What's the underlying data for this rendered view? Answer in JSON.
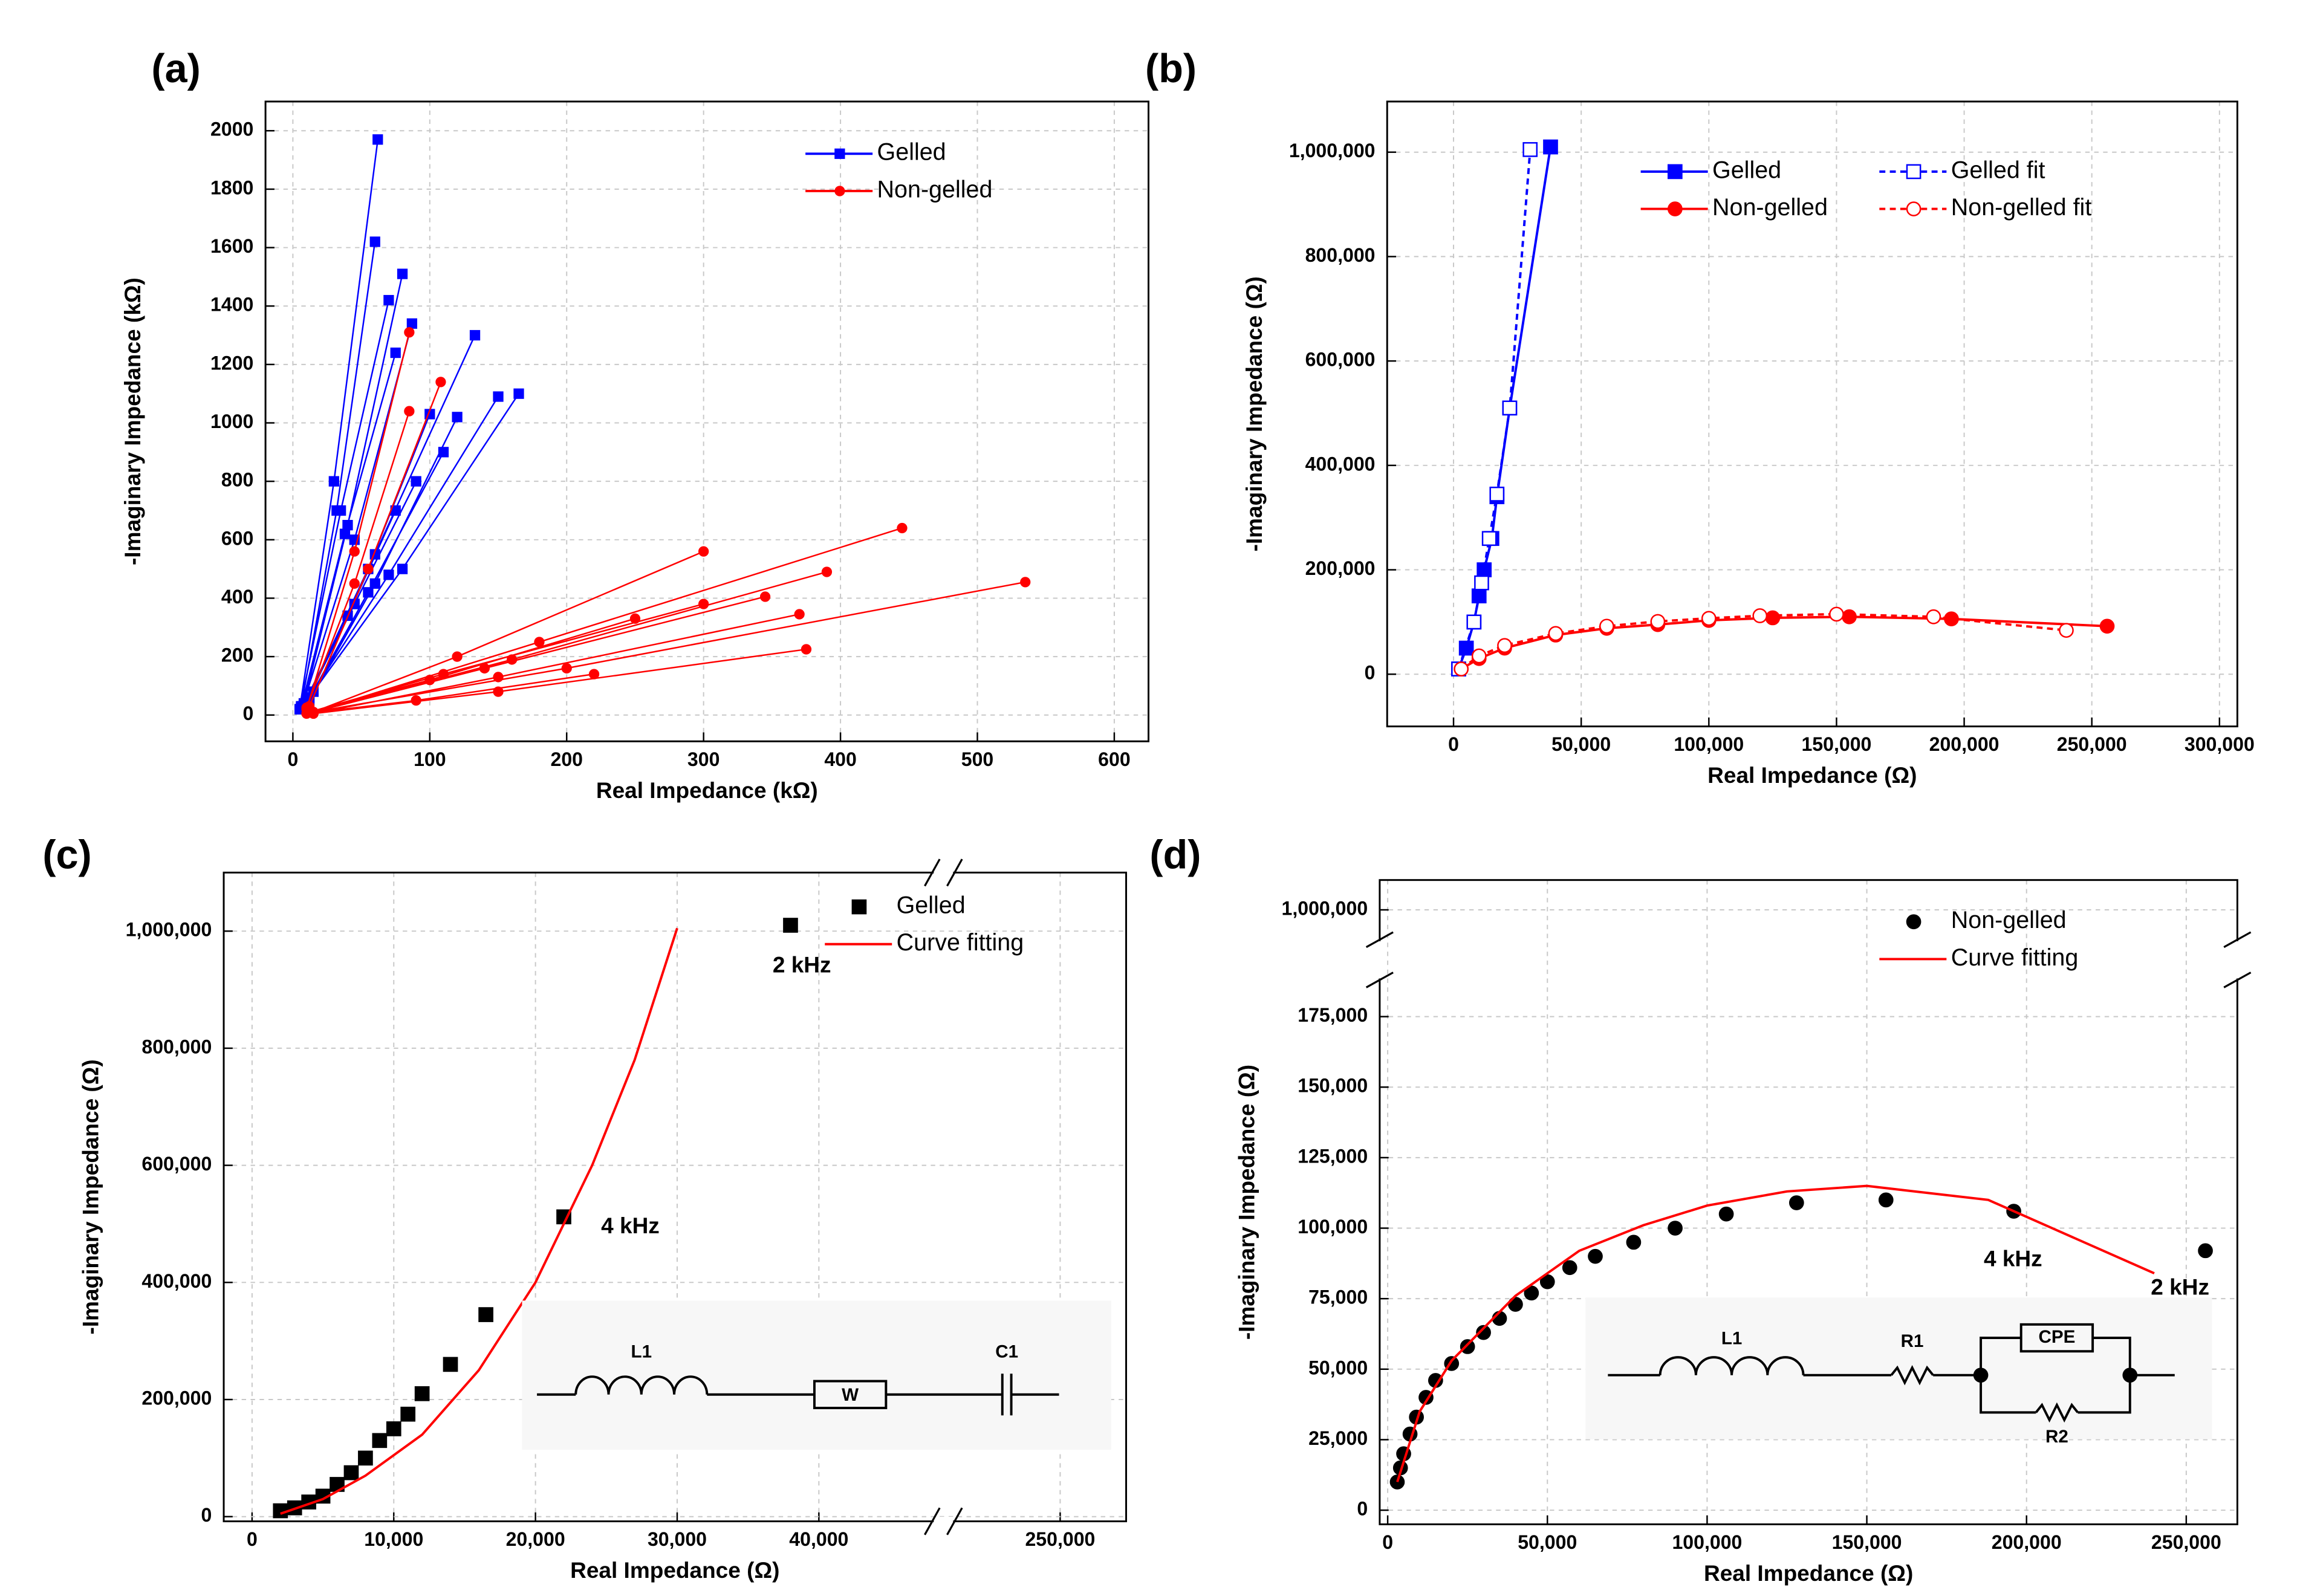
{
  "chart_data": [
    {
      "type": "line",
      "label": "(a)",
      "xlabel": "Real Impedance (kΩ)",
      "ylabel": "-Imaginary Impedance (kΩ)",
      "xlim": [
        -20,
        625
      ],
      "xticks": [
        0,
        100,
        200,
        300,
        400,
        500,
        600
      ],
      "ylim": [
        -90,
        2100
      ],
      "yticks": [
        0,
        200,
        400,
        600,
        800,
        1000,
        1200,
        1400,
        1600,
        1800,
        2000
      ],
      "grid": true,
      "legend": "upper right",
      "series": [
        {
          "name": "Gelled",
          "color": "#0000ff",
          "marker": "square",
          "filled": true,
          "dashed": false,
          "line": true,
          "x": [
            5,
            30,
            62,
            null,
            6,
            32,
            60,
            null,
            8,
            40,
            80,
            null,
            7,
            45,
            87,
            null,
            10,
            60,
            133,
            null,
            12,
            70,
            150,
            null,
            15,
            80,
            165,
            null,
            6,
            38,
            75,
            null,
            5,
            35,
            70,
            null,
            10,
            55,
            100,
            null,
            12,
            60,
            120,
            null,
            10,
            55,
            110,
            null,
            8,
            45,
            90,
            null,
            6,
            40,
            75
          ],
          "values": [
            20,
            800,
            1970,
            null,
            30,
            700,
            1620,
            null,
            40,
            650,
            1510,
            null,
            30,
            600,
            1340,
            null,
            50,
            550,
            1300,
            null,
            60,
            480,
            1090,
            null,
            80,
            500,
            1100,
            null,
            25,
            620,
            1240,
            null,
            20,
            700,
            1420,
            null,
            40,
            500,
            1030,
            null,
            50,
            450,
            1020,
            null,
            40,
            420,
            900,
            null,
            30,
            380,
            800,
            null,
            20,
            340,
            700
          ]
        },
        {
          "name": "Non-gelled",
          "color": "#ff0000",
          "marker": "circle",
          "filled": true,
          "dashed": false,
          "line": true,
          "x": [
            10,
            45,
            85,
            null,
            12,
            55,
            108,
            null,
            10,
            45,
            85,
            null,
            15,
            120,
            300,
            null,
            15,
            180,
            445,
            null,
            15,
            200,
            535,
            null,
            15,
            160,
            390,
            null,
            15,
            150,
            370,
            null,
            15,
            140,
            345,
            null,
            15,
            150,
            375,
            null,
            10,
            90,
            220,
            null,
            12,
            100,
            250,
            null,
            12,
            110,
            300
          ],
          "values": [
            20,
            560,
            1310,
            null,
            30,
            500,
            1140,
            null,
            25,
            450,
            1040,
            null,
            10,
            200,
            560,
            null,
            10,
            250,
            640,
            null,
            10,
            160,
            455,
            null,
            10,
            190,
            490,
            null,
            5,
            130,
            345,
            null,
            10,
            160,
            405,
            null,
            5,
            80,
            225,
            null,
            5,
            50,
            140,
            null,
            10,
            120,
            330,
            null,
            10,
            140,
            380
          ]
        }
      ]
    },
    {
      "type": "line",
      "label": "(b)",
      "xlabel": "Real Impedance (Ω)",
      "ylabel": "-Imaginary Impedance (Ω)",
      "xlim": [
        -26000,
        307000
      ],
      "xticks": [
        0,
        {
          "value": 50000,
          "label": "50,000"
        },
        {
          "value": 100000,
          "label": "100,000"
        },
        {
          "value": 150000,
          "label": "150,000"
        },
        {
          "value": 200000,
          "label": "200,000"
        },
        {
          "value": 250000,
          "label": "250,000"
        },
        {
          "value": 300000,
          "label": "300,000"
        }
      ],
      "ylim": [
        -100000,
        1097000
      ],
      "yticks": [
        0,
        {
          "value": 200000,
          "label": "200,000"
        },
        {
          "value": 400000,
          "label": "400,000"
        },
        {
          "value": 600000,
          "label": "600,000"
        },
        {
          "value": 800000,
          "label": "800,000"
        },
        {
          "value": 1000000,
          "label": "1,000,000"
        }
      ],
      "grid": true,
      "legend": "upper center",
      "legend_columns": 2,
      "series": [
        {
          "name": "Gelled",
          "color": "#0000ff",
          "marker": "square",
          "filled": true,
          "dashed": false,
          "line": true,
          "x": [
            2000,
            5000,
            8000,
            10000,
            12000,
            15000,
            17000,
            22000,
            38000
          ],
          "values": [
            10000,
            50000,
            100000,
            150000,
            200000,
            260000,
            340000,
            510000,
            1010000
          ]
        },
        {
          "name": "Gelled fit",
          "color": "#0000ff",
          "marker": "square",
          "filled": false,
          "dashed": true,
          "line": true,
          "x": [
            2000,
            8000,
            11000,
            14000,
            17000,
            22000,
            30000
          ],
          "values": [
            10000,
            100000,
            175000,
            260000,
            345000,
            510000,
            1005000
          ]
        },
        {
          "name": "Non-gelled",
          "color": "#ff0000",
          "marker": "circle",
          "filled": true,
          "dashed": false,
          "line": true,
          "x": [
            3000,
            10000,
            20000,
            40000,
            60000,
            80000,
            100000,
            125000,
            155000,
            195000,
            256000
          ],
          "values": [
            10000,
            30000,
            50000,
            75000,
            88000,
            95000,
            103000,
            108000,
            110000,
            106000,
            92000
          ]
        },
        {
          "name": "Non-gelled fit",
          "color": "#ff0000",
          "marker": "circle",
          "filled": false,
          "dashed": true,
          "line": true,
          "x": [
            3000,
            10000,
            20000,
            40000,
            60000,
            80000,
            100000,
            120000,
            150000,
            188000,
            240000
          ],
          "values": [
            10000,
            35000,
            55000,
            78000,
            92000,
            101000,
            107000,
            112000,
            115000,
            110000,
            84000
          ]
        }
      ]
    },
    {
      "type": "line",
      "label": "(c)",
      "xlabel": "Real Impedance (Ω)",
      "ylabel": "-Imaginary Impedance (Ω)",
      "xlim": [
        -2000,
        255000
      ],
      "xbreak": [
        48000,
        242000
      ],
      "xticks": [
        0,
        {
          "value": 10000,
          "label": "10,000"
        },
        {
          "value": 20000,
          "label": "20,000"
        },
        {
          "value": 30000,
          "label": "30,000"
        },
        {
          "value": 40000,
          "label": "40,000"
        },
        {
          "value": 250000,
          "label": "250,000"
        }
      ],
      "ylim": [
        -8000,
        1100000
      ],
      "yticks": [
        0,
        {
          "value": 200000,
          "label": "200,000"
        },
        {
          "value": 400000,
          "label": "400,000"
        },
        {
          "value": 600000,
          "label": "600,000"
        },
        {
          "value": 800000,
          "label": "800,000"
        },
        {
          "value": 1000000,
          "label": "1,000,000"
        }
      ],
      "grid": true,
      "legend": "upper right",
      "annotations": [
        "2 kHz",
        "4 kHz"
      ],
      "circuit_labels": [
        "L1",
        "W",
        "C1"
      ],
      "series": [
        {
          "name": "Gelled",
          "color": "#000000",
          "marker": "square",
          "filled": true,
          "dashed": false,
          "line": false,
          "x": [
            2000,
            3000,
            4000,
            5000,
            6000,
            7000,
            8000,
            9000,
            10000,
            11000,
            12000,
            14000,
            16500,
            22000,
            38000
          ],
          "values": [
            10000,
            15000,
            25000,
            35000,
            55000,
            75000,
            100000,
            130000,
            150000,
            175000,
            210000,
            260000,
            345000,
            512000,
            1010000
          ]
        },
        {
          "name": "Curve fitting",
          "color": "#ff0000",
          "marker": "none",
          "filled": false,
          "dashed": false,
          "line": true,
          "x": [
            2000,
            5000,
            8000,
            12000,
            16000,
            20000,
            24000,
            27000,
            30000
          ],
          "values": [
            5000,
            30000,
            70000,
            140000,
            250000,
            400000,
            600000,
            780000,
            1005000
          ]
        }
      ]
    },
    {
      "type": "line",
      "label": "(d)",
      "xlabel": "Real Impedance (Ω)",
      "ylabel": "-Imaginary Impedance (Ω)",
      "xlim": [
        -2500,
        266000
      ],
      "xticks": [
        0,
        {
          "value": 50000,
          "label": "50,000"
        },
        {
          "value": 100000,
          "label": "100,000"
        },
        {
          "value": 150000,
          "label": "150,000"
        },
        {
          "value": 200000,
          "label": "200,000"
        },
        {
          "value": 250000,
          "label": "250,000"
        }
      ],
      "ylim": [
        -5000,
        1005000
      ],
      "ybreak": [
        188000,
        995000
      ],
      "yticks": [
        0,
        {
          "value": 25000,
          "label": "25,000"
        },
        {
          "value": 50000,
          "label": "50,000"
        },
        {
          "value": 75000,
          "label": "75,000"
        },
        {
          "value": 100000,
          "label": "100,000"
        },
        {
          "value": 125000,
          "label": "125,000"
        },
        {
          "value": 150000,
          "label": "150,000"
        },
        {
          "value": 175000,
          "label": "175,000"
        },
        {
          "value": 1000000,
          "label": "1,000,000"
        }
      ],
      "grid": true,
      "legend": "upper right",
      "annotations": [
        "4 kHz",
        "2 kHz"
      ],
      "circuit_labels": [
        "L1",
        "R1",
        "CPE",
        "R2"
      ],
      "series": [
        {
          "name": "Non-gelled",
          "color": "#000000",
          "marker": "circle",
          "filled": true,
          "dashed": false,
          "line": false,
          "x": [
            3000,
            4000,
            5000,
            7000,
            9000,
            12000,
            15000,
            20000,
            25000,
            30000,
            35000,
            40000,
            45000,
            50000,
            57000,
            65000,
            77000,
            90000,
            106000,
            128000,
            156000,
            196000,
            256000
          ],
          "values": [
            10000,
            15000,
            20000,
            27000,
            33000,
            40000,
            46000,
            52000,
            58000,
            63000,
            68000,
            73000,
            77000,
            81000,
            86000,
            90000,
            95000,
            100000,
            105000,
            109000,
            110000,
            106000,
            92000
          ]
        },
        {
          "name": "Curve fitting",
          "color": "#ff0000",
          "marker": "none",
          "filled": false,
          "dashed": false,
          "line": true,
          "x": [
            3000,
            10000,
            20000,
            40000,
            60000,
            80000,
            100000,
            125000,
            150000,
            188000,
            240000
          ],
          "values": [
            10000,
            35000,
            53000,
            76000,
            92000,
            101000,
            108000,
            113000,
            115000,
            110000,
            84000
          ]
        }
      ]
    }
  ]
}
